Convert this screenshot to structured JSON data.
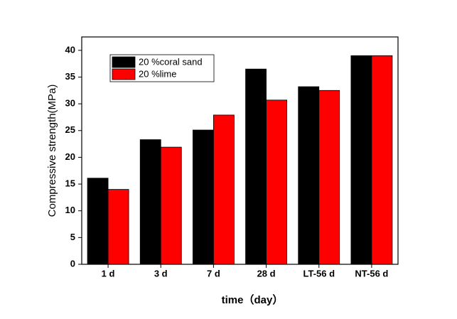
{
  "chart_data": {
    "type": "bar",
    "xlabel": "time（day）",
    "ylabel": "Compressive strength(MPa)",
    "categories": [
      "1 d",
      "3 d",
      "7 d",
      "28 d",
      "LT-56 d",
      "NT-56 d"
    ],
    "series": [
      {
        "name": "20 %coral sand",
        "color": "#000000",
        "values": [
          16.1,
          23.3,
          25.1,
          36.5,
          33.2,
          39.0
        ]
      },
      {
        "name": "20 %lime",
        "color": "#ff0000",
        "values": [
          14.0,
          21.9,
          27.9,
          30.7,
          32.5,
          39.0
        ]
      }
    ],
    "ylim": [
      0,
      42.5
    ],
    "yticks": [
      0,
      5,
      10,
      15,
      20,
      25,
      30,
      35,
      40
    ],
    "legend": "upper left"
  }
}
